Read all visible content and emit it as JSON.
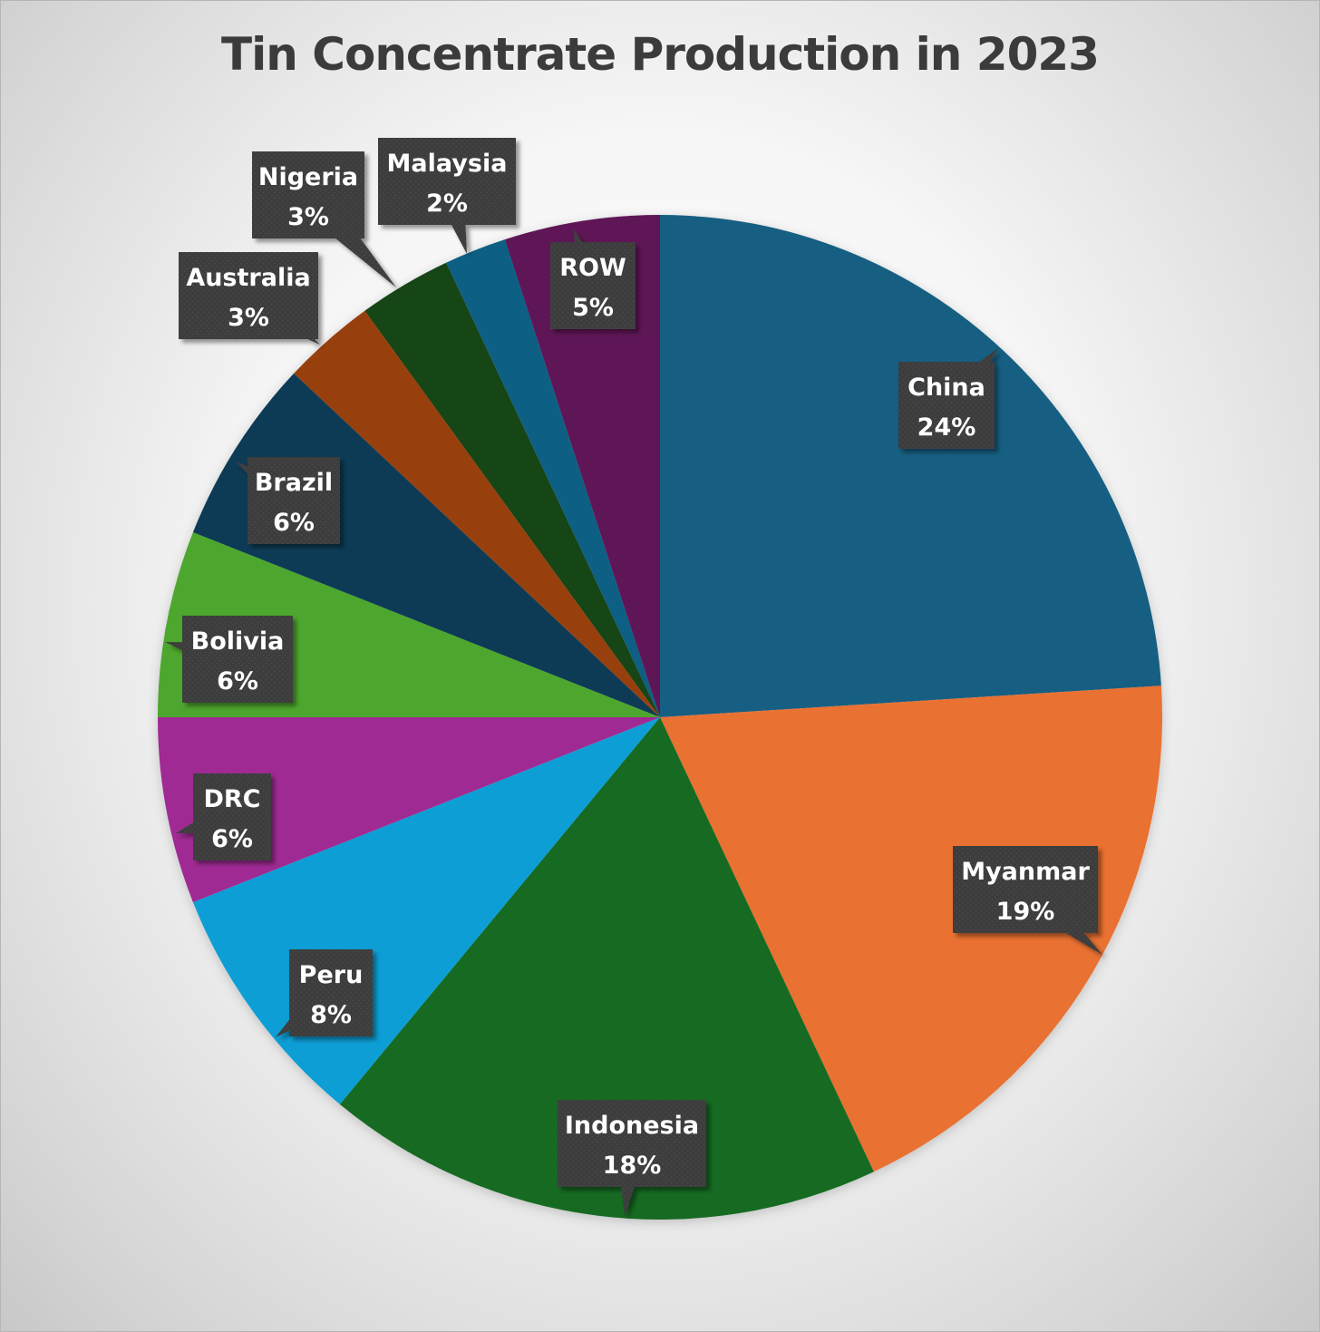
{
  "chart_data": {
    "type": "pie",
    "title": "Tin Concentrate Production in 2023",
    "start_angle_deg": 0,
    "direction": "clockwise",
    "slices": [
      {
        "label": "China",
        "value": 24,
        "value_label": "24%",
        "color": "#165E82"
      },
      {
        "label": "Myanmar",
        "value": 19,
        "value_label": "19%",
        "color": "#E97132"
      },
      {
        "label": "Indonesia",
        "value": 18,
        "value_label": "18%",
        "color": "#196B24"
      },
      {
        "label": "Peru",
        "value": 8,
        "value_label": "8%",
        "color": "#0F9ED5"
      },
      {
        "label": "DRC",
        "value": 6,
        "value_label": "6%",
        "color": "#A02B93"
      },
      {
        "label": "Bolivia",
        "value": 6,
        "value_label": "6%",
        "color": "#4EA72E"
      },
      {
        "label": "Brazil",
        "value": 6,
        "value_label": "6%",
        "color": "#0E3A55"
      },
      {
        "label": "Australia",
        "value": 3,
        "value_label": "3%",
        "color": "#984010"
      },
      {
        "label": "Nigeria",
        "value": 3,
        "value_label": "3%",
        "color": "#124416"
      },
      {
        "label": "Malaysia",
        "value": 2,
        "value_label": "2%",
        "color": "#0B5E84"
      },
      {
        "label": "ROW",
        "value": 5,
        "value_label": "5%",
        "color": "#5E1957"
      }
    ],
    "callout_color": "#404040",
    "callout_text_color": "#FFFFFF"
  }
}
